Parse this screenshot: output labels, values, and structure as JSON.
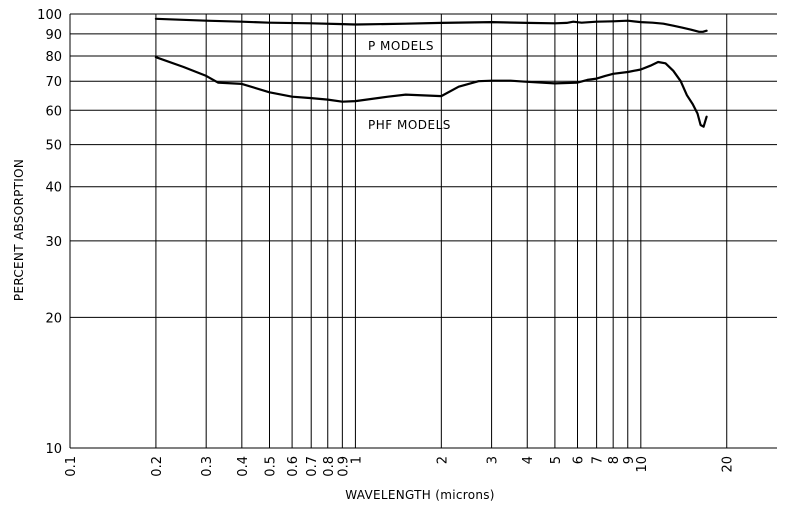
{
  "chart_data": {
    "type": "line",
    "title": "",
    "xlabel": "WAVELENGTH (microns)",
    "ylabel": "PERCENT ABSORPTION",
    "xscale": "log",
    "yscale": "log",
    "xlim": [
      0.1,
      30
    ],
    "ylim": [
      10,
      100
    ],
    "grid": true,
    "x_ticks": [
      0.1,
      0.2,
      0.3,
      0.4,
      0.5,
      0.6,
      0.7,
      0.8,
      0.9,
      1,
      2,
      3,
      4,
      5,
      6,
      7,
      8,
      9,
      10,
      20
    ],
    "x_tick_labels": [
      "0.1",
      "0.2",
      "0.3",
      "0.4",
      "0.5",
      "0.6",
      "0.7",
      "0.8",
      "0.9",
      "1",
      "2",
      "3",
      "4",
      "5",
      "6",
      "7",
      "8",
      "9",
      "10",
      "20"
    ],
    "y_ticks": [
      10,
      20,
      30,
      40,
      50,
      60,
      70,
      80,
      90,
      100
    ],
    "y_tick_labels": [
      "10",
      "20",
      "30",
      "40",
      "50",
      "60",
      "70",
      "80",
      "90",
      "100"
    ],
    "series": [
      {
        "name": "P MODELS",
        "x": [
          0.2,
          0.3,
          0.4,
          0.5,
          0.7,
          0.9,
          1.0,
          1.5,
          2.0,
          3.0,
          4.0,
          5.0,
          5.5,
          5.8,
          6.2,
          7.0,
          8.0,
          9.0,
          10.0,
          11.0,
          12.0,
          13.0,
          14.0,
          15.0,
          16.0,
          16.5,
          17.0
        ],
        "y": [
          97.5,
          96.5,
          96.0,
          95.5,
          95.2,
          94.8,
          94.6,
          95.0,
          95.4,
          95.8,
          95.4,
          95.2,
          95.4,
          96.0,
          95.5,
          96.0,
          96.2,
          96.5,
          95.8,
          95.5,
          95.0,
          94.0,
          93.0,
          92.0,
          91.0,
          91.0,
          91.5
        ]
      },
      {
        "name": "PHF MODELS",
        "x": [
          0.2,
          0.25,
          0.3,
          0.33,
          0.4,
          0.5,
          0.6,
          0.7,
          0.8,
          0.9,
          1.0,
          1.3,
          1.5,
          2.0,
          2.3,
          2.7,
          3.0,
          3.5,
          4.0,
          5.0,
          6.0,
          6.5,
          7.0,
          7.5,
          8.0,
          9.0,
          10.0,
          10.8,
          11.5,
          12.2,
          13.0,
          13.8,
          14.5,
          15.2,
          15.8,
          16.2,
          16.6,
          17.0
        ],
        "y": [
          79.5,
          75.5,
          72.0,
          69.5,
          69.0,
          66.0,
          64.5,
          64.0,
          63.5,
          62.8,
          63.0,
          64.5,
          65.2,
          64.7,
          68.0,
          70.0,
          70.2,
          70.2,
          69.8,
          69.2,
          69.5,
          70.5,
          71.0,
          72.0,
          72.8,
          73.5,
          74.5,
          76.0,
          77.5,
          77.0,
          74.0,
          70.0,
          65.0,
          62.0,
          59.0,
          55.5,
          55.0,
          58.0
        ]
      }
    ],
    "annotations": [
      "P MODELS",
      "PHF MODELS"
    ]
  }
}
